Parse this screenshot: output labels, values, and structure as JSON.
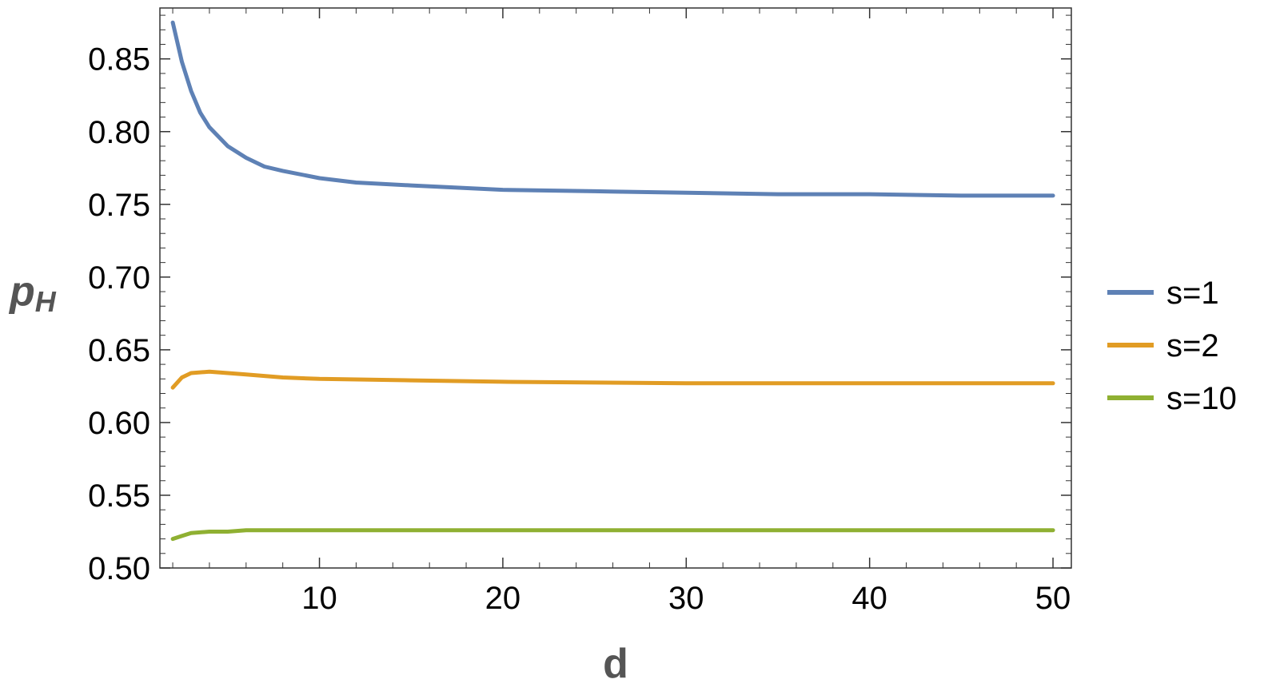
{
  "chart_data": {
    "type": "line",
    "xlabel": "d",
    "ylabel": "p",
    "ylabel_subscript": "H",
    "xlim": [
      1.3,
      51
    ],
    "ylim": [
      0.5,
      0.885
    ],
    "x_ticks": [
      10,
      20,
      30,
      40,
      50
    ],
    "y_ticks": [
      0.5,
      0.55,
      0.6,
      0.65,
      0.7,
      0.75,
      0.8,
      0.85
    ],
    "x_minor_step": 2,
    "y_minor_step": 0.01,
    "grid": false,
    "legend_position": "right",
    "series": [
      {
        "name": "s=1",
        "color": "#5e81b5",
        "x": [
          2,
          2.5,
          3,
          3.5,
          4,
          5,
          6,
          7,
          8,
          10,
          12,
          15,
          20,
          25,
          30,
          35,
          40,
          45,
          50
        ],
        "y": [
          0.875,
          0.848,
          0.828,
          0.813,
          0.803,
          0.79,
          0.782,
          0.776,
          0.773,
          0.768,
          0.765,
          0.763,
          0.76,
          0.759,
          0.758,
          0.757,
          0.757,
          0.756,
          0.756
        ]
      },
      {
        "name": "s=2",
        "color": "#e19c24",
        "x": [
          2,
          2.5,
          3,
          4,
          5,
          6,
          8,
          10,
          15,
          20,
          30,
          40,
          50
        ],
        "y": [
          0.624,
          0.631,
          0.634,
          0.635,
          0.634,
          0.633,
          0.631,
          0.63,
          0.629,
          0.628,
          0.627,
          0.627,
          0.627
        ]
      },
      {
        "name": "s=10",
        "color": "#8fb032",
        "x": [
          2,
          2.5,
          3,
          4,
          5,
          6,
          8,
          10,
          15,
          20,
          30,
          40,
          50
        ],
        "y": [
          0.52,
          0.522,
          0.524,
          0.525,
          0.525,
          0.526,
          0.526,
          0.526,
          0.526,
          0.526,
          0.526,
          0.526,
          0.526
        ]
      }
    ]
  }
}
